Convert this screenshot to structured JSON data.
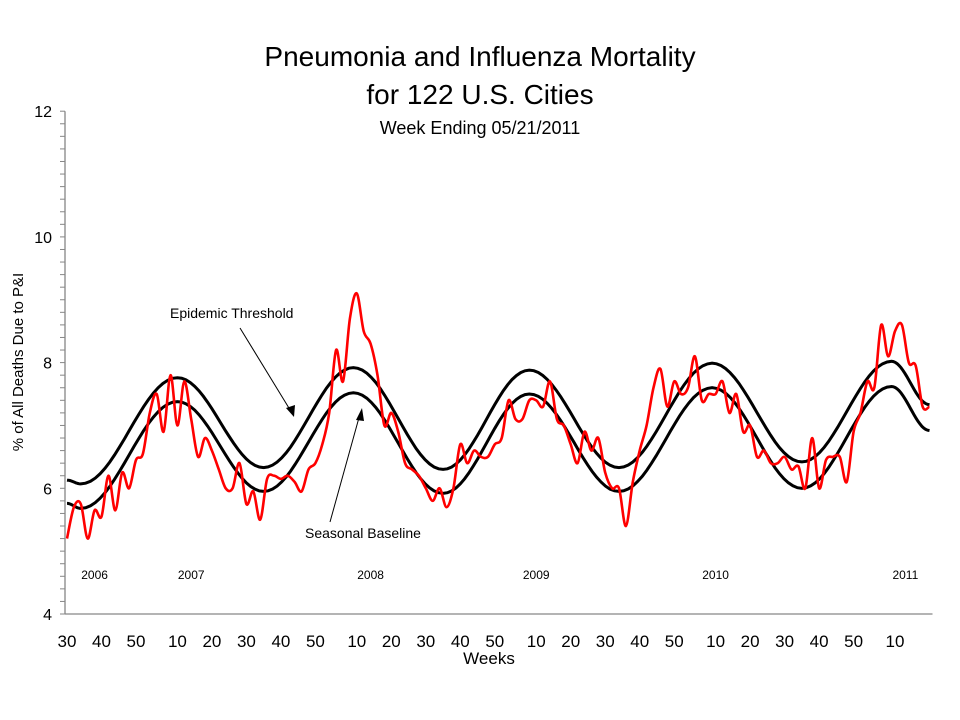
{
  "chart_data": {
    "type": "line",
    "title": "Pneumonia and Influenza Mortality",
    "title_line2": "for 122 U.S. Cities",
    "subtitle": "Week Ending  05/21/2011",
    "xlabel": "Weeks",
    "ylabel": "% of All Deaths Due to P&I",
    "ylim": [
      4,
      12
    ],
    "yticks": [
      "4",
      "6",
      "8",
      "10",
      "12"
    ],
    "y_minor_tick_step": 0.2,
    "xlim": [
      "2006-30",
      "2011-20"
    ],
    "xtick_labels": [
      {
        "x": "2006-30",
        "label": "30"
      },
      {
        "x": "2006-40",
        "label": "40"
      },
      {
        "x": "2006-50",
        "label": "50"
      },
      {
        "x": "2007-10",
        "label": "10"
      },
      {
        "x": "2007-20",
        "label": "20"
      },
      {
        "x": "2007-30",
        "label": "30"
      },
      {
        "x": "2007-40",
        "label": "40"
      },
      {
        "x": "2007-50",
        "label": "50"
      },
      {
        "x": "2008-10",
        "label": "10"
      },
      {
        "x": "2008-20",
        "label": "20"
      },
      {
        "x": "2008-30",
        "label": "30"
      },
      {
        "x": "2008-40",
        "label": "40"
      },
      {
        "x": "2008-50",
        "label": "50"
      },
      {
        "x": "2009-10",
        "label": "10"
      },
      {
        "x": "2009-20",
        "label": "20"
      },
      {
        "x": "2009-30",
        "label": "30"
      },
      {
        "x": "2009-40",
        "label": "40"
      },
      {
        "x": "2009-50",
        "label": "50"
      },
      {
        "x": "2010-10",
        "label": "10"
      },
      {
        "x": "2010-20",
        "label": "20"
      },
      {
        "x": "2010-30",
        "label": "30"
      },
      {
        "x": "2010-40",
        "label": "40"
      },
      {
        "x": "2010-50",
        "label": "50"
      },
      {
        "x": "2011-10",
        "label": "10"
      }
    ],
    "year_labels": [
      {
        "x": "2006-38",
        "label": "2006"
      },
      {
        "x": "2007-14",
        "label": "2007"
      },
      {
        "x": "2008-14",
        "label": "2008"
      },
      {
        "x": "2009-10",
        "label": "2009"
      },
      {
        "x": "2010-10",
        "label": "2010"
      },
      {
        "x": "2011-13",
        "label": "2011"
      }
    ],
    "grid": false,
    "legend": "none",
    "annotations": [
      {
        "text": "Epidemic Threshold",
        "points_to": "threshold"
      },
      {
        "text": "Seasonal Baseline",
        "points_to": "baseline"
      }
    ],
    "series": [
      {
        "key": "observed",
        "color": "#ff0000",
        "points": [
          [
            "2006-30",
            5.2
          ],
          [
            "2006-32",
            5.7
          ],
          [
            "2006-34",
            5.75
          ],
          [
            "2006-36",
            5.2
          ],
          [
            "2006-38",
            5.65
          ],
          [
            "2006-40",
            5.55
          ],
          [
            "2006-42",
            6.2
          ],
          [
            "2006-44",
            5.65
          ],
          [
            "2006-46",
            6.25
          ],
          [
            "2006-48",
            6.0
          ],
          [
            "2006-50",
            6.45
          ],
          [
            "2006-52",
            6.55
          ],
          [
            "2007-02",
            7.2
          ],
          [
            "2007-04",
            7.5
          ],
          [
            "2007-06",
            6.9
          ],
          [
            "2007-08",
            7.8
          ],
          [
            "2007-10",
            7.0
          ],
          [
            "2007-12",
            7.7
          ],
          [
            "2007-14",
            7.1
          ],
          [
            "2007-16",
            6.5
          ],
          [
            "2007-18",
            6.8
          ],
          [
            "2007-20",
            6.6
          ],
          [
            "2007-22",
            6.3
          ],
          [
            "2007-24",
            6.0
          ],
          [
            "2007-26",
            6.0
          ],
          [
            "2007-28",
            6.4
          ],
          [
            "2007-30",
            5.75
          ],
          [
            "2007-32",
            5.95
          ],
          [
            "2007-34",
            5.5
          ],
          [
            "2007-36",
            6.15
          ],
          [
            "2007-38",
            6.2
          ],
          [
            "2007-40",
            6.15
          ],
          [
            "2007-42",
            6.2
          ],
          [
            "2007-44",
            6.1
          ],
          [
            "2007-46",
            5.95
          ],
          [
            "2007-48",
            6.3
          ],
          [
            "2007-50",
            6.4
          ],
          [
            "2007-52",
            6.7
          ],
          [
            "2008-02",
            7.2
          ],
          [
            "2008-04",
            8.2
          ],
          [
            "2008-06",
            7.7
          ],
          [
            "2008-08",
            8.7
          ],
          [
            "2008-10",
            9.1
          ],
          [
            "2008-12",
            8.5
          ],
          [
            "2008-14",
            8.3
          ],
          [
            "2008-16",
            7.8
          ],
          [
            "2008-18",
            7.0
          ],
          [
            "2008-20",
            7.2
          ],
          [
            "2008-22",
            6.9
          ],
          [
            "2008-24",
            6.4
          ],
          [
            "2008-26",
            6.3
          ],
          [
            "2008-28",
            6.2
          ],
          [
            "2008-30",
            6.0
          ],
          [
            "2008-32",
            5.8
          ],
          [
            "2008-34",
            6.0
          ],
          [
            "2008-36",
            5.7
          ],
          [
            "2008-38",
            6.0
          ],
          [
            "2008-40",
            6.7
          ],
          [
            "2008-42",
            6.4
          ],
          [
            "2008-44",
            6.6
          ],
          [
            "2008-46",
            6.5
          ],
          [
            "2008-48",
            6.5
          ],
          [
            "2008-50",
            6.7
          ],
          [
            "2008-52",
            6.8
          ],
          [
            "2009-02",
            7.4
          ],
          [
            "2009-04",
            7.1
          ],
          [
            "2009-06",
            7.1
          ],
          [
            "2009-08",
            7.4
          ],
          [
            "2009-10",
            7.4
          ],
          [
            "2009-12",
            7.3
          ],
          [
            "2009-14",
            7.7
          ],
          [
            "2009-16",
            7.1
          ],
          [
            "2009-18",
            7.0
          ],
          [
            "2009-20",
            6.7
          ],
          [
            "2009-22",
            6.4
          ],
          [
            "2009-24",
            6.9
          ],
          [
            "2009-26",
            6.6
          ],
          [
            "2009-28",
            6.8
          ],
          [
            "2009-30",
            6.25
          ],
          [
            "2009-32",
            6.0
          ],
          [
            "2009-34",
            6.0
          ],
          [
            "2009-36",
            5.4
          ],
          [
            "2009-38",
            6.1
          ],
          [
            "2009-40",
            6.6
          ],
          [
            "2009-42",
            7.0
          ],
          [
            "2009-44",
            7.6
          ],
          [
            "2009-46",
            7.9
          ],
          [
            "2009-48",
            7.3
          ],
          [
            "2009-50",
            7.7
          ],
          [
            "2009-52",
            7.5
          ],
          [
            "2010-02",
            7.6
          ],
          [
            "2010-04",
            8.1
          ],
          [
            "2010-06",
            7.4
          ],
          [
            "2010-08",
            7.5
          ],
          [
            "2010-10",
            7.5
          ],
          [
            "2010-12",
            7.7
          ],
          [
            "2010-14",
            7.2
          ],
          [
            "2010-16",
            7.5
          ],
          [
            "2010-18",
            6.9
          ],
          [
            "2010-20",
            7.0
          ],
          [
            "2010-22",
            6.5
          ],
          [
            "2010-24",
            6.6
          ],
          [
            "2010-26",
            6.4
          ],
          [
            "2010-28",
            6.4
          ],
          [
            "2010-30",
            6.5
          ],
          [
            "2010-32",
            6.3
          ],
          [
            "2010-34",
            6.35
          ],
          [
            "2010-36",
            6.0
          ],
          [
            "2010-38",
            6.8
          ],
          [
            "2010-40",
            6.0
          ],
          [
            "2010-42",
            6.45
          ],
          [
            "2010-44",
            6.5
          ],
          [
            "2010-46",
            6.5
          ],
          [
            "2010-48",
            6.1
          ],
          [
            "2010-50",
            6.9
          ],
          [
            "2010-52",
            7.2
          ],
          [
            "2011-02",
            7.7
          ],
          [
            "2011-04",
            7.6
          ],
          [
            "2011-06",
            8.6
          ],
          [
            "2011-08",
            8.1
          ],
          [
            "2011-10",
            8.5
          ],
          [
            "2011-12",
            8.6
          ],
          [
            "2011-14",
            8.0
          ],
          [
            "2011-16",
            7.95
          ],
          [
            "2011-18",
            7.3
          ],
          [
            "2011-20",
            7.3
          ]
        ]
      },
      {
        "key": "threshold",
        "color": "#000000",
        "points": [
          [
            "2006-30",
            6.13
          ],
          [
            "2006-34",
            6.07
          ],
          [
            "2007-10",
            7.76
          ],
          [
            "2007-35",
            6.33
          ],
          [
            "2008-09",
            7.92
          ],
          [
            "2008-35",
            6.3
          ],
          [
            "2009-08",
            7.88
          ],
          [
            "2009-34",
            6.33
          ],
          [
            "2010-09",
            7.99
          ],
          [
            "2010-35",
            6.42
          ],
          [
            "2011-09",
            8.02
          ],
          [
            "2011-20",
            7.33
          ]
        ]
      },
      {
        "key": "baseline",
        "color": "#000000",
        "points": [
          [
            "2006-30",
            5.76
          ],
          [
            "2006-34",
            5.68
          ],
          [
            "2007-10",
            7.38
          ],
          [
            "2007-35",
            5.95
          ],
          [
            "2008-09",
            7.52
          ],
          [
            "2008-35",
            5.92
          ],
          [
            "2009-08",
            7.5
          ],
          [
            "2009-34",
            5.95
          ],
          [
            "2010-09",
            7.6
          ],
          [
            "2010-35",
            6.0
          ],
          [
            "2011-09",
            7.62
          ],
          [
            "2011-20",
            6.92
          ]
        ]
      }
    ]
  }
}
